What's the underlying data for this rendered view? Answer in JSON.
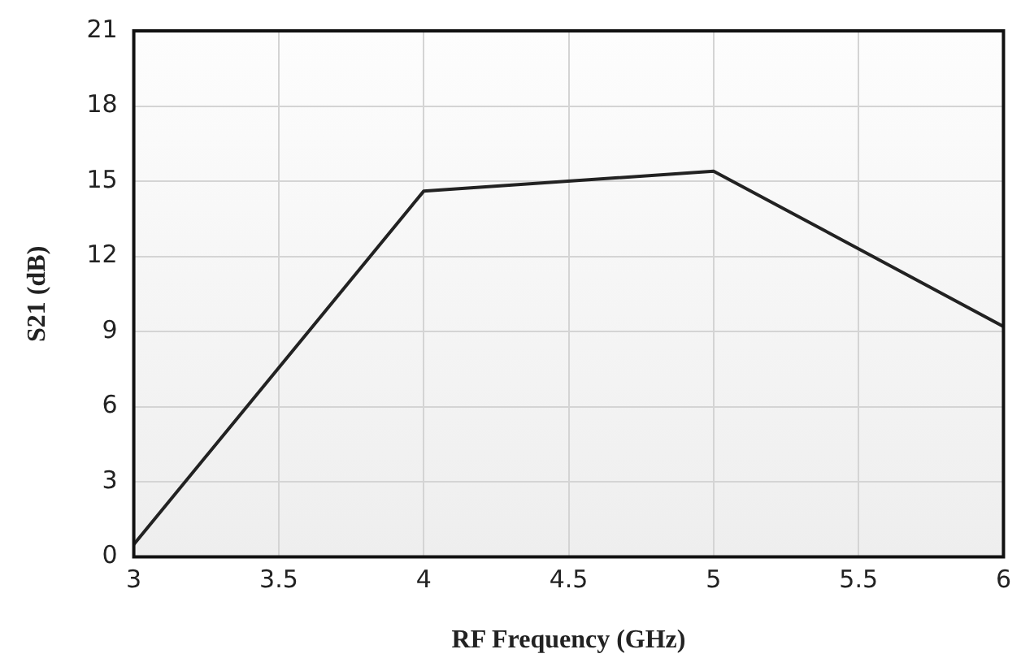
{
  "chart_data": {
    "type": "line",
    "xlabel": "RF Frequency (GHz)",
    "ylabel": "S21 (dB)",
    "x": [
      3,
      4,
      5,
      6
    ],
    "series": [
      {
        "color": "#222222",
        "values": [
          0.5,
          14.6,
          15.4,
          9.2
        ]
      }
    ],
    "xlim": [
      3,
      6
    ],
    "xticks": [
      3,
      3.5,
      4,
      4.5,
      5,
      5.5,
      6
    ],
    "ylim": [
      0,
      21
    ],
    "yticks": [
      0,
      3,
      6,
      9,
      12,
      15,
      18,
      21
    ],
    "grid": true,
    "legend": false,
    "marker": "none",
    "line_style": "solid"
  }
}
